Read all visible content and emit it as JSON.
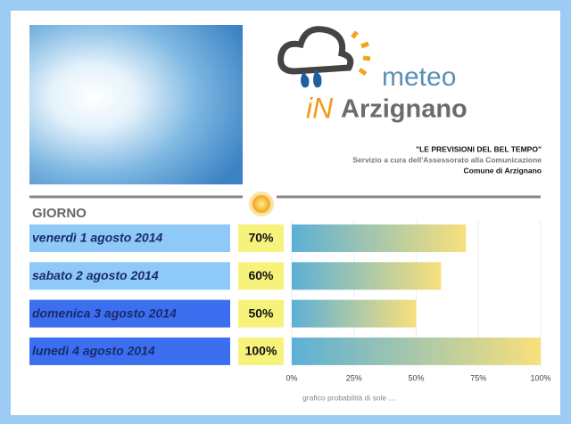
{
  "logo": {
    "word1": "meteo",
    "word2": "iN",
    "word3": "Arzignano"
  },
  "header": {
    "title": "\"LE PREVISIONI DEL BEL TEMPO\"",
    "subtitle": "Servizio a cura dell'Assessorato alla Comunicazione",
    "author": "Comune di Arzignano"
  },
  "chart_data": {
    "type": "bar",
    "orientation": "horizontal",
    "column_header": "GIORNO",
    "categories": [
      "venerdì 1 agosto 2014",
      "sabato 2 agosto 2014",
      "domenica 3 agosto 2014",
      "lunedì 4 agosto 2014"
    ],
    "values": [
      70,
      60,
      50,
      100
    ],
    "value_labels": [
      "70%",
      "60%",
      "50%",
      "100%"
    ],
    "category_colors": [
      "#8ec9f7",
      "#8ec9f7",
      "#3c6ff0",
      "#3c6ff0"
    ],
    "bar_gradient": [
      "#5cb0d6",
      "#f8e07c"
    ],
    "xlim": [
      0,
      100
    ],
    "xticks": [
      {
        "value": 0,
        "label": "0%"
      },
      {
        "value": 25,
        "label": "25%"
      },
      {
        "value": 50,
        "label": "50%"
      },
      {
        "value": 75,
        "label": "75%"
      },
      {
        "value": 100,
        "label": "100%"
      }
    ],
    "xlabel": "grafico probabilità di sole ....",
    "grid": true
  }
}
